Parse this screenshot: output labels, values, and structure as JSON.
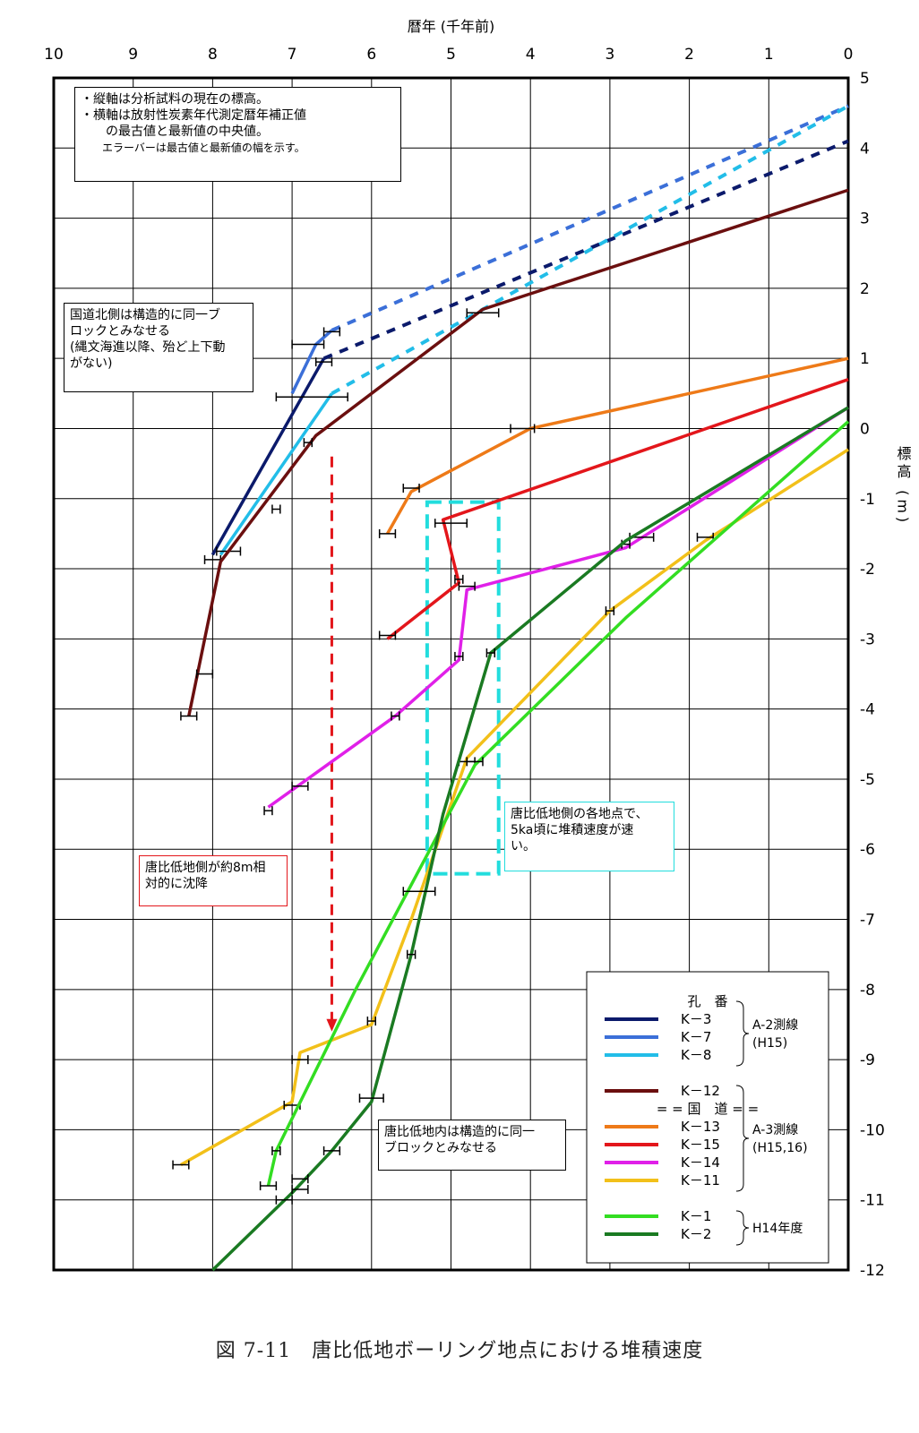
{
  "caption": "図 7-11　唐比低地ボーリング地点における堆積速度",
  "notes": {
    "axis_note": [
      "・縦軸は分析試料の現在の標高。",
      "・横軸は放射性炭素年代測定暦年補正値",
      "　　の最古値と最新値の中央値。",
      "　　エラーバーは最古値と最新値の幅を示す。"
    ],
    "north_block": [
      "国道北側は構造的に同一ブ",
      "ロックとみなせる",
      "(縄文海進以降、殆ど上下動",
      "がない)"
    ],
    "rate_note": [
      "唐比低地側の各地点で、",
      "5ka頃に堆積速度が速",
      "い。"
    ],
    "subsidence": [
      "唐比低地側が約8m相",
      "対的に沈降"
    ],
    "lowland_block": [
      "唐比低地内は構造的に同一",
      "ブロックとみなせる"
    ]
  },
  "legend": {
    "header": "孔　番",
    "divider": "= = 国　道 = =",
    "groups": [
      {
        "label": [
          "A-2測線",
          "(H15)"
        ]
      },
      {
        "label": [
          "A-3測線",
          "(H15,16)"
        ]
      },
      {
        "label": [
          "H14年度"
        ]
      }
    ]
  },
  "colors": {
    "K-3": "#0b1a6b",
    "K-7": "#3b6fd8",
    "K-8": "#22bde8",
    "K-12": "#6b0f0f",
    "K-13": "#ee7a18",
    "K-15": "#e3161b",
    "K-14": "#e020e8",
    "K-11": "#f2c01a",
    "K-1": "#33dd22",
    "K-2": "#1a7a22",
    "note_cyan": "#22dddd",
    "note_red": "#e3161b"
  },
  "chart_data": {
    "type": "line",
    "xlabel": "暦年 (千年前)",
    "ylabel": "標高 (m)",
    "xlim": [
      10,
      0
    ],
    "ylim": [
      -12,
      5
    ],
    "x_ticks": [
      10,
      9,
      8,
      7,
      6,
      5,
      4,
      3,
      2,
      1,
      0
    ],
    "y_ticks": [
      5,
      4,
      3,
      2,
      1,
      0,
      -1,
      -2,
      -3,
      -4,
      -5,
      -6,
      -7,
      -8,
      -9,
      -10,
      -11,
      -12
    ],
    "grid": true,
    "legend_position": "bottom-right",
    "series": [
      {
        "name": "K-3",
        "group": "A-2",
        "points": [
          [
            8.0,
            -1.8
          ],
          [
            6.6,
            1.0
          ]
        ],
        "dashed": [
          [
            6.6,
            1.0
          ],
          [
            0,
            4.1
          ]
        ],
        "errors": [
          [
            8.0,
            -1.87,
            8.1,
            7.9
          ],
          [
            6.6,
            0.95,
            6.7,
            6.5
          ]
        ]
      },
      {
        "name": "K-7",
        "group": "A-2",
        "points": [
          [
            7.0,
            0.5
          ],
          [
            6.7,
            1.2
          ],
          [
            6.5,
            1.4
          ]
        ],
        "dashed": [
          [
            6.5,
            1.4
          ],
          [
            0,
            4.6
          ]
        ],
        "errors": [
          [
            6.8,
            1.2,
            7.0,
            6.6
          ],
          [
            6.5,
            1.38,
            6.6,
            6.4
          ]
        ]
      },
      {
        "name": "K-8",
        "group": "A-2",
        "points": [
          [
            7.9,
            -1.8
          ],
          [
            6.5,
            0.5
          ]
        ],
        "dashed": [
          [
            6.5,
            0.5
          ],
          [
            0,
            4.6
          ]
        ],
        "errors": [
          [
            7.8,
            -1.75,
            7.95,
            7.65
          ],
          [
            6.8,
            0.45,
            7.2,
            6.3
          ]
        ]
      },
      {
        "name": "K-12",
        "group": "A-3",
        "points": [
          [
            8.3,
            -4.1
          ],
          [
            7.9,
            -1.9
          ],
          [
            6.7,
            -0.1
          ],
          [
            4.6,
            1.7
          ],
          [
            0,
            3.4
          ]
        ],
        "errors": [
          [
            8.3,
            -4.1,
            8.4,
            8.2
          ],
          [
            8.1,
            -3.5,
            8.2,
            8.0
          ],
          [
            7.2,
            -1.15,
            7.25,
            7.15
          ],
          [
            6.8,
            -0.2,
            6.85,
            6.75
          ],
          [
            4.6,
            1.65,
            4.8,
            4.4
          ]
        ]
      },
      {
        "name": "K-13",
        "group": "A-3",
        "points": [
          [
            5.8,
            -1.5
          ],
          [
            5.5,
            -0.9
          ],
          [
            4.0,
            0.0
          ],
          [
            0,
            1.0
          ]
        ],
        "errors": [
          [
            5.8,
            -1.5,
            5.9,
            5.7
          ],
          [
            5.5,
            -0.85,
            5.6,
            5.4
          ],
          [
            4.1,
            0.0,
            4.25,
            3.95
          ]
        ]
      },
      {
        "name": "K-15",
        "group": "A-3",
        "points": [
          [
            5.8,
            -3.0
          ],
          [
            4.9,
            -2.2
          ],
          [
            5.1,
            -1.3
          ],
          [
            0,
            0.7
          ]
        ],
        "errors": [
          [
            5.8,
            -2.95,
            5.9,
            5.7
          ],
          [
            4.9,
            -2.15,
            4.95,
            4.85
          ],
          [
            5.0,
            -1.35,
            5.2,
            4.8
          ]
        ]
      },
      {
        "name": "K-14",
        "group": "A-3",
        "points": [
          [
            7.3,
            -5.4
          ],
          [
            5.7,
            -4.1
          ],
          [
            4.9,
            -3.3
          ],
          [
            4.8,
            -2.3
          ],
          [
            2.8,
            -1.7
          ],
          [
            0,
            0.3
          ]
        ],
        "errors": [
          [
            7.3,
            -5.45,
            7.35,
            7.25
          ],
          [
            6.9,
            -5.1,
            7.0,
            6.8
          ],
          [
            5.7,
            -4.1,
            5.75,
            5.65
          ],
          [
            4.9,
            -3.25,
            4.95,
            4.85
          ],
          [
            4.8,
            -2.25,
            4.9,
            4.7
          ],
          [
            2.8,
            -1.65,
            2.85,
            2.75
          ],
          [
            2.6,
            -1.55,
            2.75,
            2.45
          ]
        ]
      },
      {
        "name": "K-11",
        "group": "A-3",
        "points": [
          [
            8.4,
            -10.5
          ],
          [
            7.0,
            -9.6
          ],
          [
            6.9,
            -8.9
          ],
          [
            6.0,
            -8.5
          ],
          [
            5.5,
            -7.0
          ],
          [
            4.8,
            -4.7
          ],
          [
            3.0,
            -2.6
          ],
          [
            1.8,
            -1.6
          ],
          [
            0,
            -0.3
          ]
        ],
        "errors": [
          [
            8.4,
            -10.5,
            8.5,
            8.3
          ],
          [
            7.0,
            -9.65,
            7.1,
            6.9
          ],
          [
            6.9,
            -9.0,
            7.0,
            6.8
          ],
          [
            6.0,
            -8.45,
            6.05,
            5.95
          ],
          [
            4.8,
            -4.75,
            4.9,
            4.7
          ],
          [
            3.0,
            -2.6,
            3.05,
            2.95
          ],
          [
            1.8,
            -1.55,
            1.9,
            1.7
          ]
        ]
      },
      {
        "name": "K-1",
        "group": "H14",
        "points": [
          [
            7.3,
            -10.8
          ],
          [
            7.2,
            -10.3
          ],
          [
            6.2,
            -8.0
          ],
          [
            4.7,
            -4.8
          ],
          [
            2.8,
            -2.7
          ],
          [
            0,
            0.1
          ]
        ],
        "errors": [
          [
            7.3,
            -10.8,
            7.4,
            7.2
          ],
          [
            7.2,
            -10.3,
            7.25,
            7.15
          ],
          [
            4.7,
            -4.75,
            4.8,
            4.6
          ]
        ]
      },
      {
        "name": "K-2",
        "group": "H14",
        "points": [
          [
            8.0,
            -12.0
          ],
          [
            7.0,
            -10.9
          ],
          [
            6.5,
            -10.3
          ],
          [
            6.0,
            -9.6
          ],
          [
            5.5,
            -7.5
          ],
          [
            5.1,
            -5.5
          ],
          [
            4.5,
            -3.2
          ],
          [
            2.8,
            -1.6
          ],
          [
            0,
            0.3
          ]
        ],
        "errors": [
          [
            7.1,
            -11.0,
            7.2,
            7.0
          ],
          [
            6.9,
            -10.85,
            7.0,
            6.8
          ],
          [
            6.9,
            -10.7,
            7.0,
            6.8
          ],
          [
            6.5,
            -10.3,
            6.6,
            6.4
          ],
          [
            6.0,
            -9.55,
            6.15,
            5.85
          ],
          [
            5.5,
            -7.5,
            5.55,
            5.45
          ],
          [
            5.4,
            -6.6,
            5.6,
            5.2
          ],
          [
            4.5,
            -3.2,
            4.55,
            4.45
          ]
        ]
      }
    ],
    "annotations": {
      "subsidence_arrow": {
        "x": 6.5,
        "y_from": -0.4,
        "y_to": -8.6
      },
      "rapid_box": {
        "x0": 5.3,
        "x1": 4.4,
        "y0": -1.05,
        "y1": -6.35
      }
    }
  }
}
